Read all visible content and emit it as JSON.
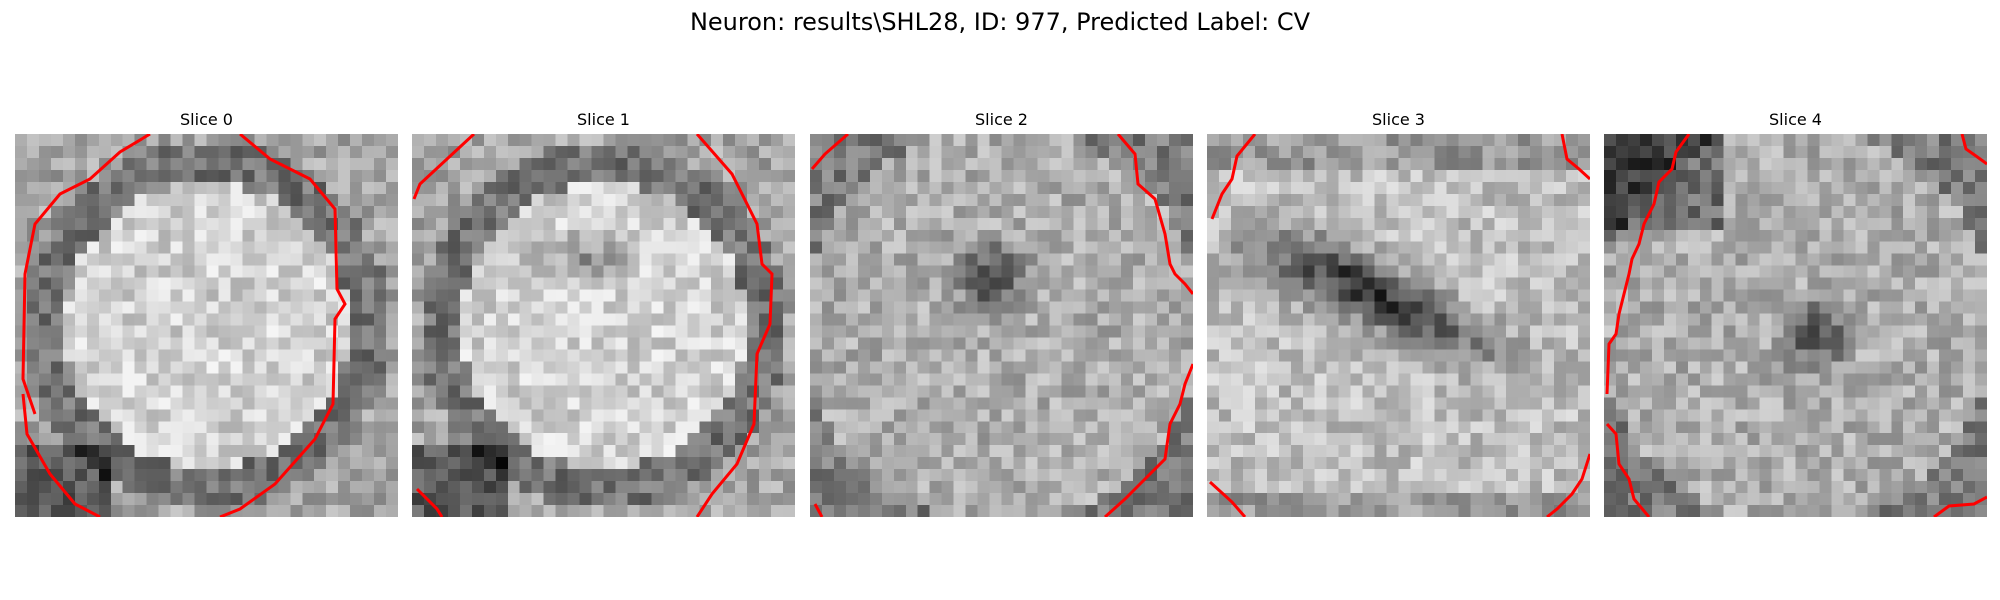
{
  "figure": {
    "title": "Neuron: results\\SHL28, ID: 977, Predicted Label: CV",
    "slices": [
      {
        "label": "Slice 0",
        "pattern": "ring-bright",
        "contour_color": "#ff0000"
      },
      {
        "label": "Slice 1",
        "pattern": "ring-bright-dark-center",
        "contour_color": "#ff0000"
      },
      {
        "label": "Slice 2",
        "pattern": "noisy-dark-spot",
        "contour_color": "#ff0000"
      },
      {
        "label": "Slice 3",
        "pattern": "dark-band",
        "contour_color": "#ff0000"
      },
      {
        "label": "Slice 4",
        "pattern": "noisy-dark-spot-low",
        "contour_color": "#ff0000"
      }
    ]
  }
}
